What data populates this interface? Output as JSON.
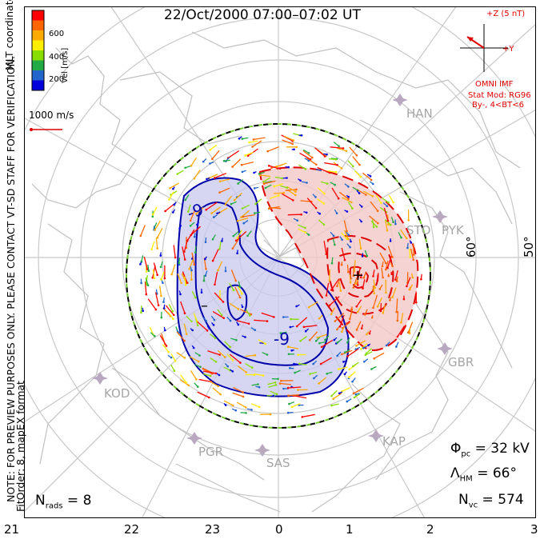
{
  "title": "22/Oct/2000 07:00–07:02 UT",
  "notes": {
    "line1": "NOTE: FOR PREVIEW PURPOSES ONLY. PLEASE CONTACT VT-SD STAFF FOR VERIFICATION.",
    "line2": "FitOrder: 8, mapEX format"
  },
  "colorbar": {
    "title": "Vel [m/s]",
    "ticks": [
      "600",
      "400",
      "200"
    ],
    "colors": [
      "#ff0000",
      "#ff6600",
      "#ffaa00",
      "#ffee00",
      "#88dd00",
      "#22aa44",
      "#2266cc",
      "#0000dd"
    ],
    "coord_label": "MLT coordinates"
  },
  "reference_vector": {
    "label": "1000 m/s",
    "color": "#e00000"
  },
  "imf": {
    "z_label": "+Z (5 nT)",
    "y_label": "+Y",
    "source": "OMNI IMF",
    "stat_mod": "Stat Mod: RG96",
    "condition": "By-, 4<BT<6"
  },
  "stations": [
    "HAN",
    "STO",
    "PYK",
    "GBR",
    "KOD",
    "PGR",
    "SAS",
    "KAP"
  ],
  "latitude_labels": [
    "60°",
    "50°"
  ],
  "mlt_labels": [
    "21",
    "22",
    "23",
    "0",
    "1",
    "2",
    "3"
  ],
  "contour_labels": [
    "-9",
    "-9",
    "-"
  ],
  "stats": {
    "phi_pc": "Φpc = 32 kV",
    "lambda_hm": "ΛHM = 66°",
    "n_vc": "Nvc = 574",
    "n_rads": "Nrads = 8"
  },
  "colors": {
    "positive_cell": "#f2c8c8",
    "negative_cell": "#c8c8ee",
    "positive_contour": "#dd0000",
    "negative_contour": "#0000aa",
    "boundary": "#77cc33",
    "station_marker": "#b8a8c0"
  }
}
